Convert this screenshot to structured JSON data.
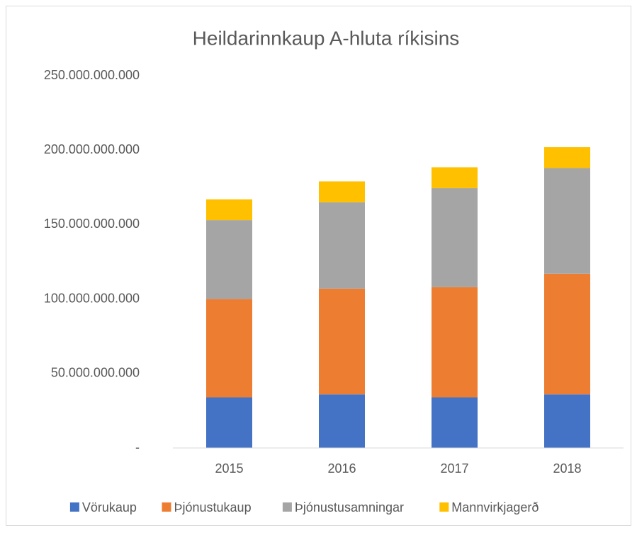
{
  "chart_data": {
    "type": "stacked_bar",
    "title": "Heildarinnkaup A-hluta ríkisins",
    "categories": [
      "2015",
      "2016",
      "2017",
      "2018"
    ],
    "series": [
      {
        "name": "Vörukaup",
        "color": "#4472c4",
        "values": [
          34000000000,
          36000000000,
          34000000000,
          36000000000
        ]
      },
      {
        "name": "Þjónustukaup",
        "color": "#ed7d31",
        "values": [
          66000000000,
          71000000000,
          74000000000,
          81000000000
        ]
      },
      {
        "name": "Þjónustusamningar",
        "color": "#a5a5a5",
        "values": [
          53000000000,
          58000000000,
          66500000000,
          71000000000
        ]
      },
      {
        "name": "Mannvirkjagerð",
        "color": "#ffc000",
        "values": [
          14000000000,
          14000000000,
          14000000000,
          14000000000
        ]
      }
    ],
    "ylim": [
      0,
      250000000000
    ],
    "yticks": [
      {
        "value": 0,
        "label": "-"
      },
      {
        "value": 50000000000,
        "label": "50.000.000.000"
      },
      {
        "value": 100000000000,
        "label": "100.000.000.000"
      },
      {
        "value": 150000000000,
        "label": "150.000.000.000"
      },
      {
        "value": 200000000000,
        "label": "200.000.000.000"
      },
      {
        "value": 250000000000,
        "label": "250.000.000.000"
      }
    ],
    "grid": false,
    "legend": "bottom"
  }
}
